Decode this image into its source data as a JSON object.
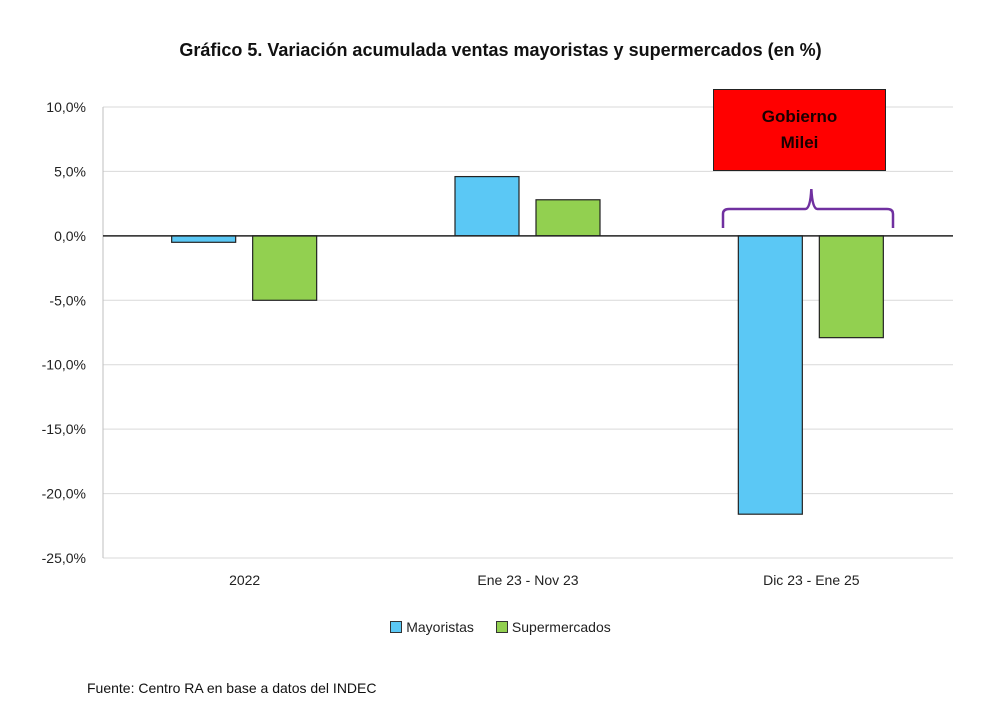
{
  "chart_data": {
    "type": "bar",
    "title": "Gráfico 5. Variación acumulada ventas mayoristas y supermercados (en %)",
    "categories": [
      "2022",
      "Ene 23 - Nov 23",
      "Dic 23 - Ene 25"
    ],
    "series": [
      {
        "name": "Mayoristas",
        "color": "#5bc8f5",
        "values": [
          -0.5,
          4.6,
          -21.6
        ]
      },
      {
        "name": "Supermercados",
        "color": "#92d050",
        "values": [
          -5.0,
          2.8,
          -7.9
        ]
      }
    ],
    "ylim": [
      -25,
      10
    ],
    "yticks": [
      10,
      5,
      0,
      -5,
      -10,
      -15,
      -20,
      -25
    ],
    "ytick_labels": [
      "10,0%",
      "5,0%",
      "0,0%",
      "-5,0%",
      "-10,0%",
      "-15,0%",
      "-20,0%",
      "-25,0%"
    ],
    "xlabel": "",
    "ylabel": "",
    "grid": true,
    "legend_position": "bottom",
    "annotation": {
      "text_line1": "Gobierno",
      "text_line2": "Milei",
      "color": "#ff0000",
      "bracket_color": "#7030a0",
      "category": "Dic 23 - Ene 25"
    }
  },
  "source": "Fuente: Centro RA en base a datos del INDEC"
}
